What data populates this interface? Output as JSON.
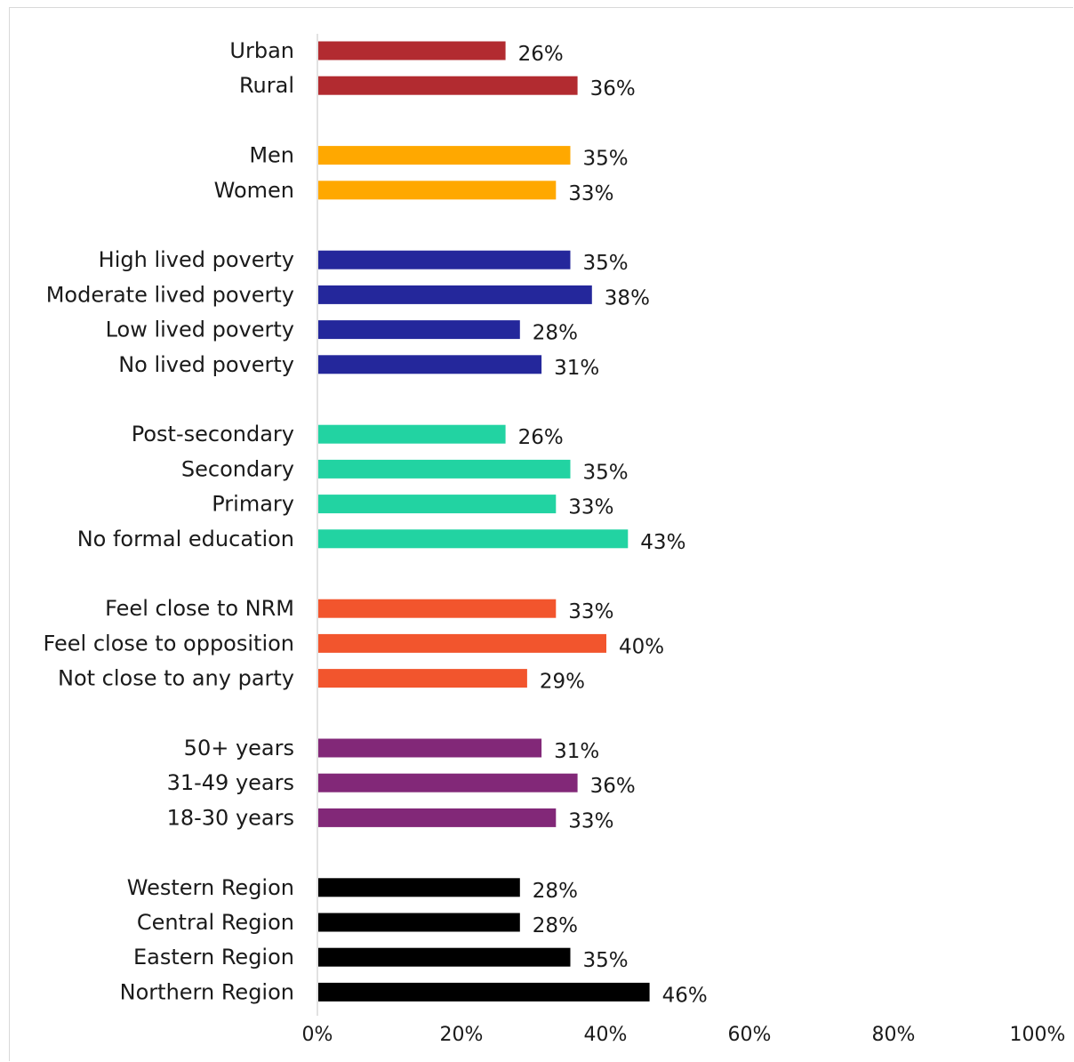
{
  "chart_data": {
    "type": "bar",
    "orientation": "horizontal",
    "title": "",
    "xlabel": "",
    "ylabel": "",
    "xlim": [
      0,
      100
    ],
    "x_ticks": [
      "0%",
      "20%",
      "40%",
      "60%",
      "80%",
      "100%"
    ],
    "grid": false,
    "legend": "none",
    "value_suffix": "%",
    "groups": [
      {
        "color": "#b22b30",
        "items": [
          {
            "label": "Urban",
            "value": 26
          },
          {
            "label": "Rural",
            "value": 36
          }
        ]
      },
      {
        "color": "#ffa800",
        "items": [
          {
            "label": "Men",
            "value": 35
          },
          {
            "label": "Women",
            "value": 33
          }
        ]
      },
      {
        "color": "#24279b",
        "items": [
          {
            "label": "High lived poverty",
            "value": 35
          },
          {
            "label": "Moderate lived poverty",
            "value": 38
          },
          {
            "label": "Low lived poverty",
            "value": 28
          },
          {
            "label": "No lived poverty",
            "value": 31
          }
        ]
      },
      {
        "color": "#22d3a2",
        "items": [
          {
            "label": "Post-secondary",
            "value": 26
          },
          {
            "label": "Secondary",
            "value": 35
          },
          {
            "label": "Primary",
            "value": 33
          },
          {
            "label": "No formal education",
            "value": 43
          }
        ]
      },
      {
        "color": "#f2552d",
        "items": [
          {
            "label": "Feel close to NRM",
            "value": 33
          },
          {
            "label": "Feel close to opposition",
            "value": 40
          },
          {
            "label": "Not close to any party",
            "value": 29
          }
        ]
      },
      {
        "color": "#822878",
        "items": [
          {
            "label": "50+ years",
            "value": 31
          },
          {
            "label": "31-49 years",
            "value": 36
          },
          {
            "label": "18-30 years",
            "value": 33
          }
        ]
      },
      {
        "color": "#000000",
        "items": [
          {
            "label": "Western Region",
            "value": 28
          },
          {
            "label": "Central Region",
            "value": 28
          },
          {
            "label": "Eastern Region",
            "value": 35
          },
          {
            "label": "Northern Region",
            "value": 46
          }
        ]
      }
    ]
  }
}
